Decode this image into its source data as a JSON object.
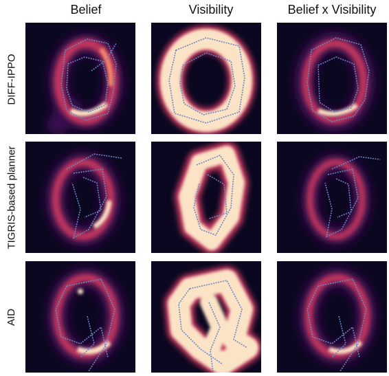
{
  "columns": [
    {
      "id": "belief",
      "title": "Belief"
    },
    {
      "id": "visibility",
      "title": "Visibility"
    },
    {
      "id": "product",
      "title": "Belief x Visibility"
    }
  ],
  "rows": [
    {
      "id": "diff-ippo",
      "label": "DIFF-IPPO"
    },
    {
      "id": "tigris",
      "label": "TIGRIS-based planner"
    },
    {
      "id": "aid",
      "label": "AID"
    }
  ],
  "colors": {
    "background": "#0b0720",
    "heat_low": "#3b0f4f",
    "heat_mid": "#c4385f",
    "heat_high": "#fbe3c6",
    "path": "#6a86c4"
  }
}
